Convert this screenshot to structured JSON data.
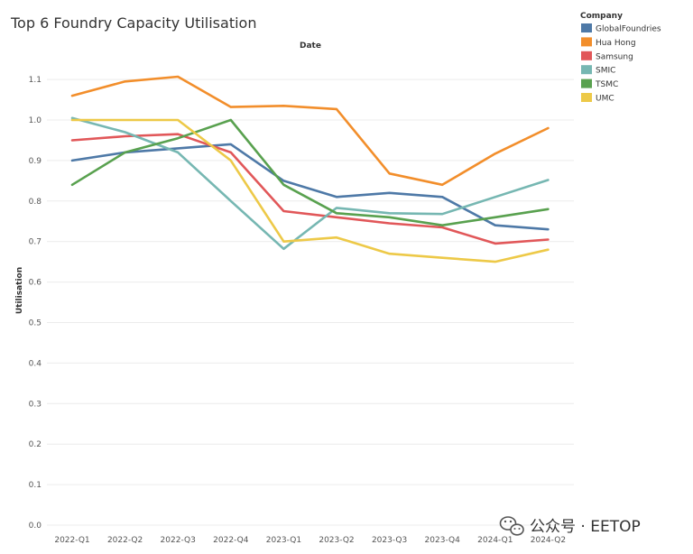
{
  "chart_data": {
    "type": "line",
    "title": "Top 6 Foundry Capacity Utilisation",
    "xlabel": "Date",
    "ylabel": "Utilisation",
    "ylim": [
      0,
      1.15
    ],
    "yticks": [
      0.0,
      0.1,
      0.2,
      0.3,
      0.4,
      0.5,
      0.6,
      0.7,
      0.8,
      0.9,
      1.0,
      1.1
    ],
    "ytick_labels": [
      "0.0",
      "0.1",
      "0.2",
      "0.3",
      "0.4",
      "0.5",
      "0.6",
      "0.7",
      "0.8",
      "0.9",
      "1.0",
      "1.1"
    ],
    "categories": [
      "2022-Q1",
      "2022-Q2",
      "2022-Q3",
      "2022-Q4",
      "2023-Q1",
      "2023-Q2",
      "2023-Q3",
      "2023-Q4",
      "2024-Q1",
      "2024-Q2"
    ],
    "grid": true,
    "legend_title": "Company",
    "legend_position": "top-right",
    "series": [
      {
        "name": "GlobalFoundries",
        "color": "#4e79a7",
        "values": [
          0.9,
          0.92,
          0.93,
          0.94,
          0.85,
          0.81,
          0.82,
          0.81,
          0.74,
          0.73
        ]
      },
      {
        "name": "Hua Hong",
        "color": "#f28e2b",
        "values": [
          1.06,
          1.095,
          1.107,
          1.032,
          1.035,
          1.027,
          0.868,
          0.84,
          0.917,
          0.98
        ]
      },
      {
        "name": "Samsung",
        "color": "#e15759",
        "values": [
          0.95,
          0.96,
          0.965,
          0.92,
          0.775,
          0.76,
          0.745,
          0.735,
          0.695,
          0.705
        ]
      },
      {
        "name": "SMIC",
        "color": "#76b7b2",
        "values": [
          1.005,
          0.97,
          0.92,
          0.8,
          0.682,
          0.783,
          0.77,
          0.768,
          0.81,
          0.852
        ]
      },
      {
        "name": "TSMC",
        "color": "#59a14f",
        "values": [
          0.84,
          0.92,
          0.955,
          1.0,
          0.84,
          0.77,
          0.76,
          0.74,
          0.76,
          0.78
        ]
      },
      {
        "name": "UMC",
        "color": "#edc948",
        "values": [
          1.0,
          1.0,
          1.0,
          0.9,
          0.7,
          0.71,
          0.67,
          0.66,
          0.65,
          0.68
        ]
      }
    ]
  },
  "watermark": {
    "text": "公众号 · EETOP"
  }
}
